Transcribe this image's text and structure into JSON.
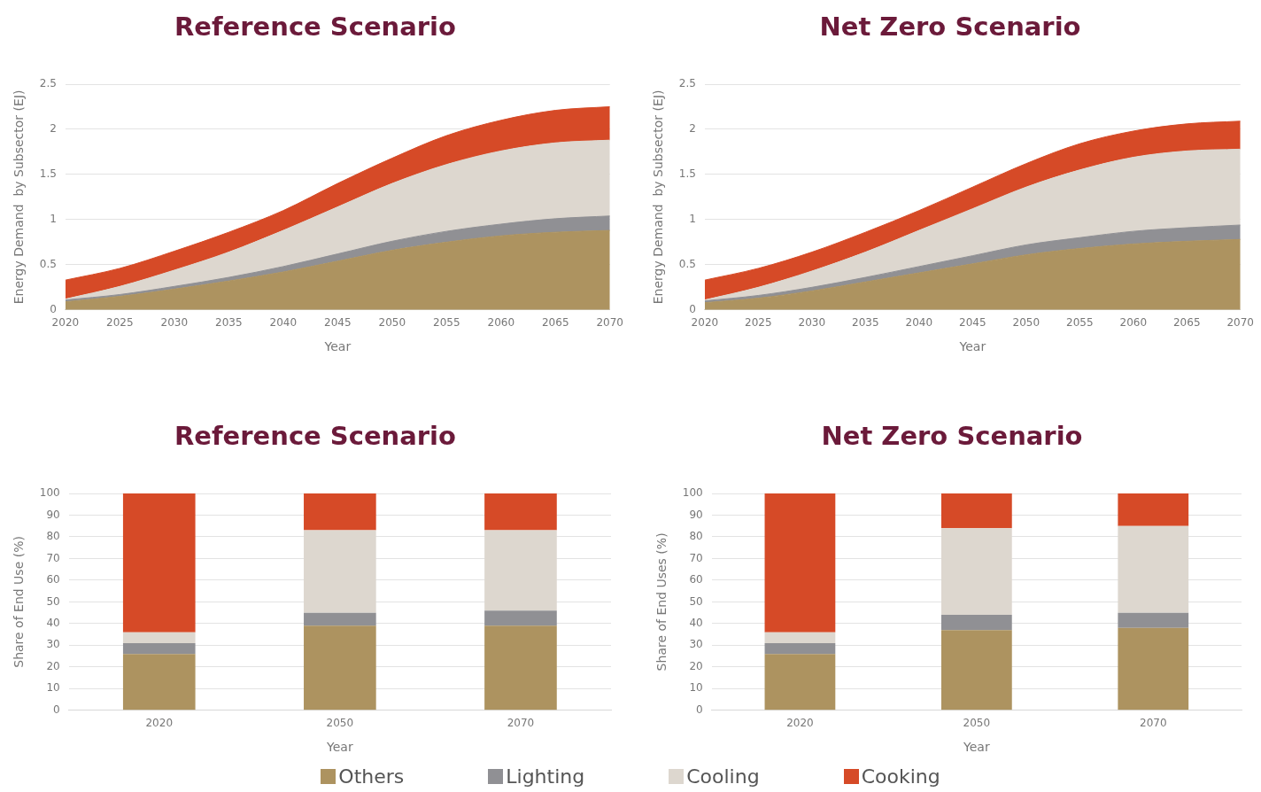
{
  "chart_data": [
    {
      "type": "area",
      "title": "Reference Scenario",
      "xlabel": "Year",
      "ylabel": "Energy Demand  by Subsector (EJ)",
      "stacked": true,
      "x": [
        2020,
        2025,
        2030,
        2035,
        2040,
        2045,
        2050,
        2055,
        2060,
        2065,
        2070
      ],
      "xlim": [
        2020,
        2070
      ],
      "xticks": [
        2020,
        2025,
        2030,
        2035,
        2040,
        2045,
        2050,
        2055,
        2060,
        2065,
        2070
      ],
      "ylim": [
        0,
        2.5
      ],
      "yticks": [
        0,
        0.5,
        1,
        1.5,
        2,
        2.5
      ],
      "grid": "y",
      "legend": "bottom",
      "series": [
        {
          "name": "Others",
          "color": "#ad9360",
          "values": [
            0.09,
            0.15,
            0.23,
            0.32,
            0.42,
            0.54,
            0.66,
            0.75,
            0.82,
            0.86,
            0.88
          ]
        },
        {
          "name": "Lighting",
          "color": "#909094",
          "values": [
            0.02,
            0.02,
            0.03,
            0.04,
            0.06,
            0.08,
            0.1,
            0.12,
            0.13,
            0.15,
            0.16
          ]
        },
        {
          "name": "Cooling",
          "color": "#ddd7cf",
          "values": [
            0.01,
            0.09,
            0.18,
            0.28,
            0.4,
            0.52,
            0.64,
            0.74,
            0.81,
            0.84,
            0.84
          ]
        },
        {
          "name": "Cooking",
          "color": "#d64a27",
          "values": [
            0.21,
            0.2,
            0.21,
            0.22,
            0.22,
            0.26,
            0.28,
            0.32,
            0.34,
            0.36,
            0.37
          ]
        }
      ]
    },
    {
      "type": "area",
      "title": "Net Zero Scenario",
      "xlabel": "Year",
      "ylabel": "Energy Demand  by Subsector (EJ)",
      "stacked": true,
      "x": [
        2020,
        2025,
        2030,
        2035,
        2040,
        2045,
        2050,
        2055,
        2060,
        2065,
        2070
      ],
      "xlim": [
        2020,
        2070
      ],
      "xticks": [
        2020,
        2025,
        2030,
        2035,
        2040,
        2045,
        2050,
        2055,
        2060,
        2065,
        2070
      ],
      "ylim": [
        0,
        2.5
      ],
      "yticks": [
        0,
        0.5,
        1,
        1.5,
        2,
        2.5
      ],
      "grid": "y",
      "series": [
        {
          "color": "#ad9360",
          "values": [
            0.08,
            0.13,
            0.21,
            0.31,
            0.41,
            0.51,
            0.61,
            0.68,
            0.73,
            0.76,
            0.78
          ]
        },
        {
          "color": "#909094",
          "values": [
            0.02,
            0.03,
            0.04,
            0.05,
            0.07,
            0.09,
            0.11,
            0.12,
            0.14,
            0.15,
            0.16
          ]
        },
        {
          "color": "#ddd7cf",
          "values": [
            0.01,
            0.09,
            0.18,
            0.28,
            0.4,
            0.52,
            0.64,
            0.75,
            0.82,
            0.85,
            0.84
          ]
        },
        {
          "color": "#d64a27",
          "values": [
            0.22,
            0.21,
            0.21,
            0.22,
            0.22,
            0.24,
            0.26,
            0.29,
            0.29,
            0.3,
            0.31
          ]
        }
      ]
    },
    {
      "type": "bar",
      "title": "Reference Scenario",
      "xlabel": "Year",
      "ylabel": "Share of End Use (%)",
      "stacked": true,
      "categories": [
        "2020",
        "2050",
        "2070"
      ],
      "ylim": [
        0,
        100
      ],
      "yticks": [
        0,
        10,
        20,
        30,
        40,
        50,
        60,
        70,
        80,
        90,
        100
      ],
      "grid": "y",
      "series": [
        {
          "color": "#ad9360",
          "values": [
            26,
            39,
            39
          ]
        },
        {
          "color": "#909094",
          "values": [
            5,
            6,
            7
          ]
        },
        {
          "color": "#ddd7cf",
          "values": [
            5,
            38,
            37
          ]
        },
        {
          "color": "#d64a27",
          "values": [
            64,
            17,
            17
          ]
        }
      ]
    },
    {
      "type": "bar",
      "title": "Net Zero Scenario",
      "xlabel": "Year",
      "ylabel": "Share of End Uses (%)",
      "stacked": true,
      "categories": [
        "2020",
        "2050",
        "2070"
      ],
      "ylim": [
        0,
        100
      ],
      "yticks": [
        0,
        10,
        20,
        30,
        40,
        50,
        60,
        70,
        80,
        90,
        100
      ],
      "grid": "y",
      "series": [
        {
          "color": "#ad9360",
          "values": [
            26,
            37,
            38
          ]
        },
        {
          "color": "#909094",
          "values": [
            5,
            7,
            7
          ]
        },
        {
          "color": "#ddd7cf",
          "values": [
            5,
            40,
            40
          ]
        },
        {
          "color": "#d64a27",
          "values": [
            64,
            16,
            15
          ]
        }
      ]
    }
  ]
}
